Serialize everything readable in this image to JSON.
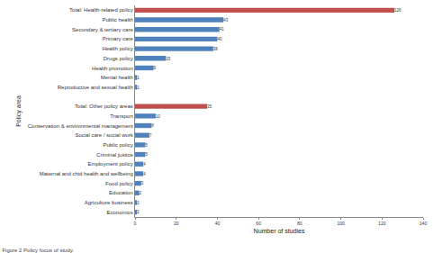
{
  "chart_data": {
    "type": "bar",
    "orientation": "horizontal",
    "title": "Figure 2 Policy focus of study.",
    "x_label": "Number of studies",
    "y_label": "Policy area",
    "categories": [
      "Total: Health-related policy",
      "Public health",
      "Secondary & tertiary care",
      "Primary care",
      "Health policy",
      "Drugs policy",
      "Health promotion",
      "Mental health",
      "Reproductive and sexual health",
      null,
      "Total: Other policy areas",
      "Transport",
      "Conservation & environmental management",
      "Social care / social work",
      "Public policy",
      "Criminal justice",
      "Employment policy",
      "Maternal and chid health and wellbeing",
      "Food policy",
      "Education",
      "Agriculture business",
      "Economics"
    ],
    "values": [
      126,
      43,
      41,
      40,
      38,
      15,
      9,
      1,
      1,
      null,
      35,
      10,
      8,
      7,
      5,
      5,
      4,
      4,
      3,
      2,
      1,
      1
    ],
    "colors": [
      "#c0504d",
      "#4f81bd",
      "#4f81bd",
      "#4f81bd",
      "#4f81bd",
      "#4f81bd",
      "#4f81bd",
      "#4f81bd",
      "#4f81bd",
      "#4f81bd",
      "#c0504d",
      "#4f81bd",
      "#4f81bd",
      "#4f81bd",
      "#4f81bd",
      "#4f81bd",
      "#4f81bd",
      "#4f81bd",
      "#4f81bd",
      "#4f81bd",
      "#4f81bd",
      "#4f81bd"
    ],
    "xlim": [
      0,
      140
    ],
    "xticks": [
      0,
      20,
      40,
      60,
      80,
      100,
      120,
      140
    ],
    "grid": false,
    "data_labels": true
  }
}
